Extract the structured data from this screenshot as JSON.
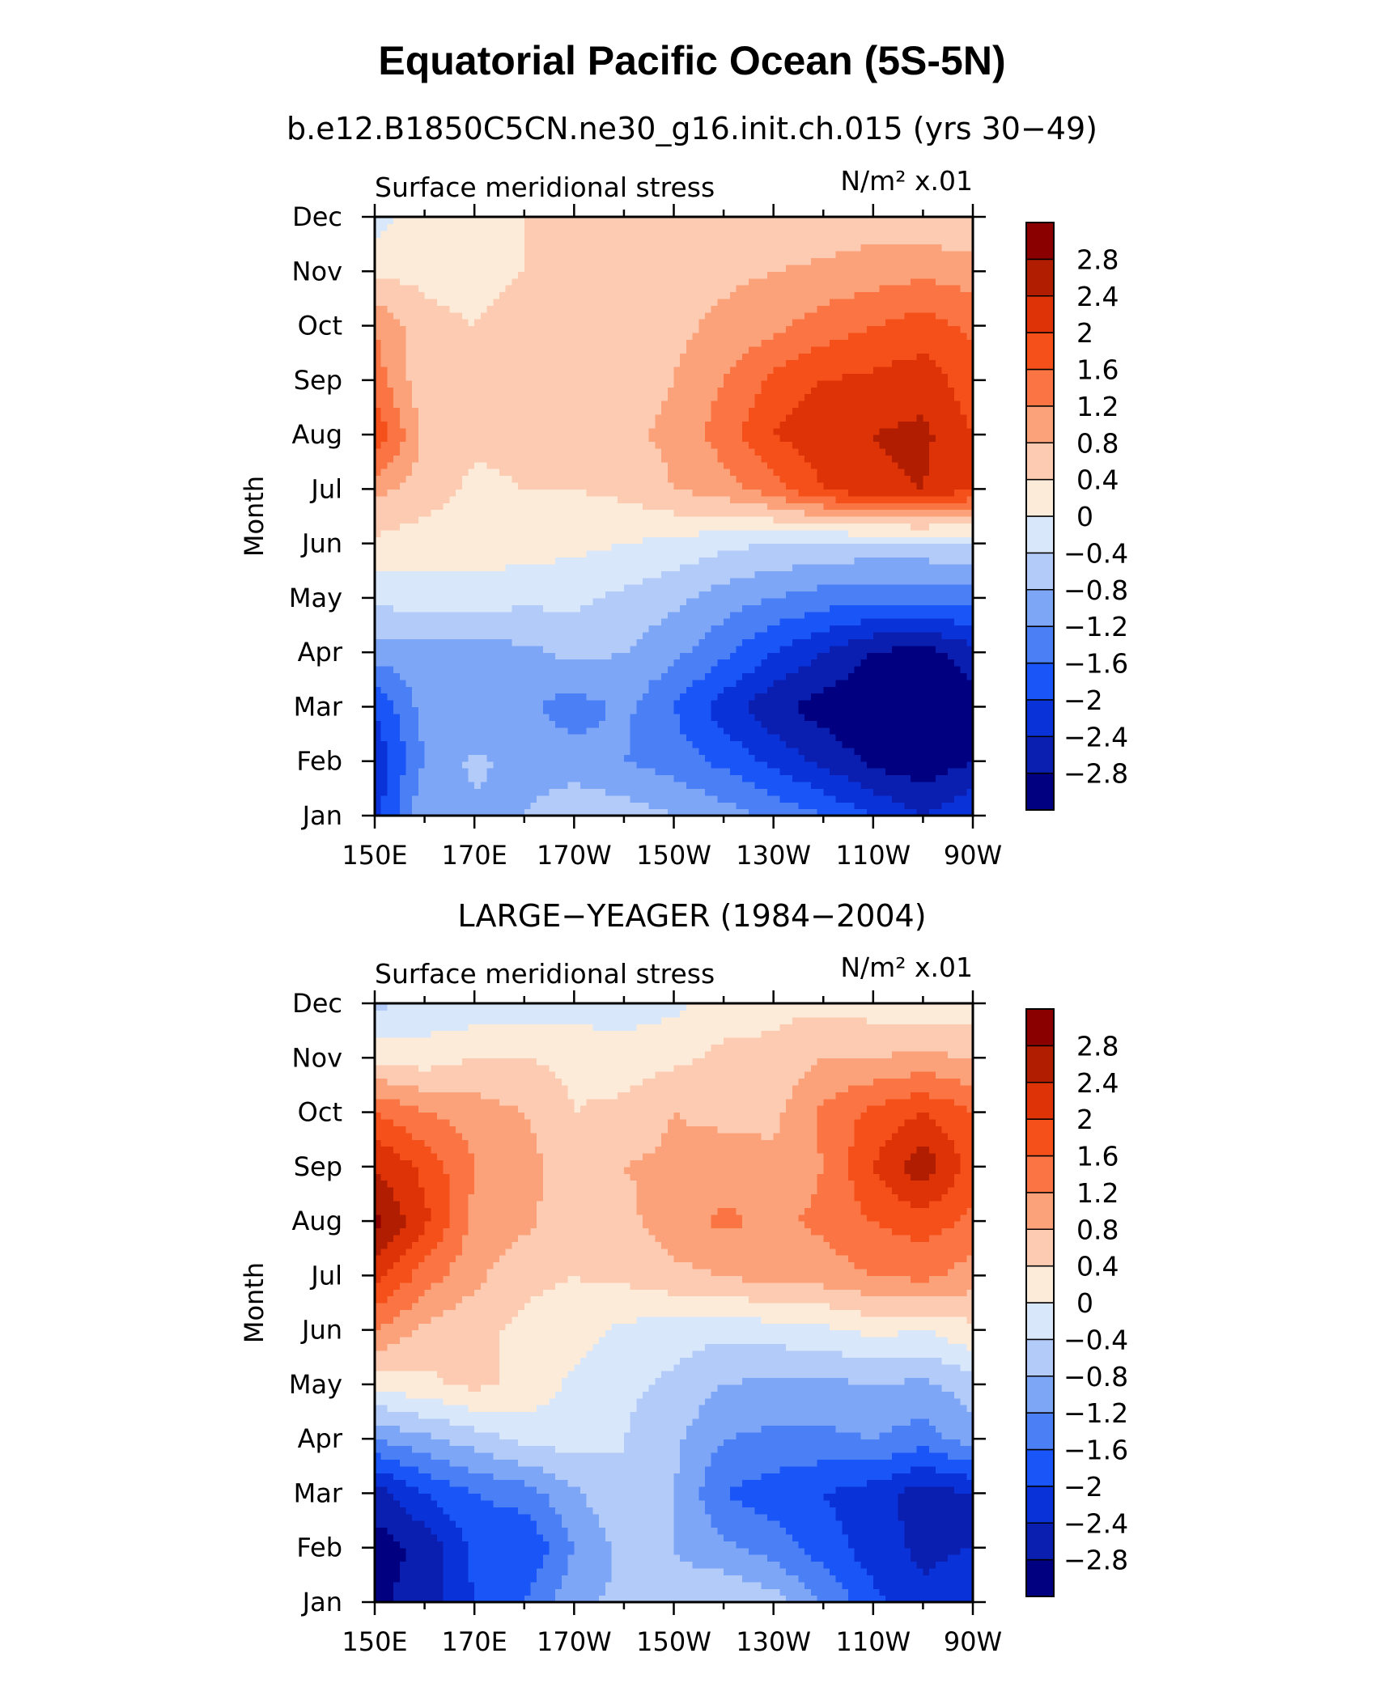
{
  "figure": {
    "title": "Equatorial Pacific Ocean (5S-5N)"
  },
  "colors": {
    "palette": [
      "#000080",
      "#0a1fb0",
      "#0a32d9",
      "#1a55f7",
      "#4a7ff5",
      "#7ea6f7",
      "#b3cbf9",
      "#d9e7fb",
      "#fdebd9",
      "#fccbb1",
      "#fba27b",
      "#fb7544",
      "#f5501a",
      "#de3306",
      "#b01d00",
      "#8a0000"
    ],
    "levels": [
      -2.8,
      -2.4,
      -2,
      -1.6,
      -1.2,
      -0.8,
      -0.4,
      0,
      0.4,
      0.8,
      1.2,
      1.6,
      2,
      2.4,
      2.8
    ]
  },
  "chart_data": [
    {
      "type": "heatmap",
      "panel_title": "b.e12.B1850C5CN.ne30_g16.init.ch.015 (yrs 30−49)",
      "left_label": "Surface meridional stress",
      "units_label": "N/m² x.01",
      "xlabel": "",
      "ylabel": "Month",
      "x_tick_labels": [
        "150E",
        "170E",
        "170W",
        "150W",
        "130W",
        "110W",
        "90W"
      ],
      "x_tick_values_deg": [
        150,
        170,
        190,
        210,
        230,
        250,
        270
      ],
      "y_tick_labels": [
        "Jan",
        "Feb",
        "Mar",
        "Apr",
        "May",
        "Jun",
        "Jul",
        "Aug",
        "Sep",
        "Oct",
        "Nov",
        "Dec"
      ],
      "colorbar_labels": [
        "−2.8",
        "−2.4",
        "−2",
        "−1.6",
        "−1.2",
        "−0.8",
        "−0.4",
        "0",
        "0.4",
        "0.8",
        "1.2",
        "1.6",
        "2",
        "2.4",
        "2.8"
      ],
      "lon": [
        150,
        160,
        170,
        180,
        190,
        200,
        210,
        220,
        230,
        240,
        250,
        260,
        270
      ],
      "months": [
        "Jan",
        "Feb",
        "Mar",
        "Apr",
        "May",
        "Jun",
        "Jul",
        "Aug",
        "Sep",
        "Oct",
        "Nov",
        "Dec"
      ],
      "values": [
        [
          -2.2,
          -0.8,
          -0.9,
          -0.8,
          -0.5,
          -0.6,
          -0.8,
          -1.0,
          -1.3,
          -1.6,
          -2.0,
          -2.4,
          -2.0
        ],
        [
          -2.3,
          -1.2,
          -0.7,
          -1.0,
          -1.0,
          -1.2,
          -1.4,
          -1.7,
          -2.1,
          -2.5,
          -2.9,
          -3.1,
          -2.8
        ],
        [
          -2.0,
          -1.0,
          -1.2,
          -1.1,
          -1.4,
          -1.1,
          -1.6,
          -2.2,
          -2.7,
          -3.0,
          -3.2,
          -3.2,
          -3.0
        ],
        [
          -1.0,
          -1.0,
          -1.0,
          -0.9,
          -0.7,
          -0.8,
          -1.1,
          -1.5,
          -2.0,
          -2.4,
          -2.8,
          -3.0,
          -2.6
        ],
        [
          -0.3,
          -0.2,
          -0.2,
          -0.3,
          -0.3,
          -0.5,
          -0.7,
          -1.0,
          -1.2,
          -1.4,
          -1.5,
          -1.5,
          -1.4
        ],
        [
          0.3,
          0.2,
          0.2,
          0.2,
          0.1,
          0.0,
          -0.1,
          -0.3,
          -0.4,
          -0.5,
          -0.5,
          -0.5,
          -0.4
        ],
        [
          0.9,
          0.6,
          0.3,
          0.4,
          0.4,
          0.5,
          0.8,
          1.0,
          1.4,
          2.0,
          2.3,
          2.4,
          2.0
        ],
        [
          2.0,
          0.7,
          0.5,
          0.5,
          0.6,
          0.7,
          0.9,
          1.4,
          2.0,
          2.3,
          2.4,
          2.5,
          2.0
        ],
        [
          1.4,
          0.5,
          0.5,
          0.5,
          0.6,
          0.6,
          0.8,
          1.2,
          1.7,
          2.0,
          2.1,
          2.2,
          1.8
        ],
        [
          1.2,
          0.5,
          0.4,
          0.5,
          0.5,
          0.6,
          0.7,
          0.9,
          1.1,
          1.4,
          1.6,
          1.8,
          1.5
        ],
        [
          0.3,
          0.3,
          0.3,
          0.4,
          0.5,
          0.6,
          0.6,
          0.7,
          0.8,
          0.9,
          1.0,
          1.1,
          1.0
        ],
        [
          -0.2,
          0.3,
          0.3,
          0.4,
          0.4,
          0.5,
          0.6,
          0.5,
          0.4,
          0.5,
          0.6,
          0.5,
          0.4
        ]
      ]
    },
    {
      "type": "heatmap",
      "panel_title": "LARGE−YEAGER (1984−2004)",
      "left_label": "Surface meridional stress",
      "units_label": "N/m² x.01",
      "xlabel": "",
      "ylabel": "Month",
      "x_tick_labels": [
        "150E",
        "170E",
        "170W",
        "150W",
        "130W",
        "110W",
        "90W"
      ],
      "x_tick_values_deg": [
        150,
        170,
        190,
        210,
        230,
        250,
        270
      ],
      "y_tick_labels": [
        "Jan",
        "Feb",
        "Mar",
        "Apr",
        "May",
        "Jun",
        "Jul",
        "Aug",
        "Sep",
        "Oct",
        "Nov",
        "Dec"
      ],
      "colorbar_labels": [
        "−2.8",
        "−2.4",
        "−2",
        "−1.6",
        "−1.2",
        "−0.8",
        "−0.4",
        "0",
        "0.4",
        "0.8",
        "1.2",
        "1.6",
        "2",
        "2.4",
        "2.8"
      ],
      "lon": [
        150,
        160,
        170,
        180,
        190,
        200,
        210,
        220,
        230,
        240,
        250,
        260,
        270
      ],
      "months": [
        "Jan",
        "Feb",
        "Mar",
        "Apr",
        "May",
        "Jun",
        "Jul",
        "Aug",
        "Sep",
        "Oct",
        "Nov",
        "Dec"
      ],
      "values": [
        [
          -2.9,
          -2.6,
          -2.0,
          -1.6,
          -0.9,
          -0.7,
          -0.6,
          -0.4,
          -0.6,
          -1.2,
          -1.9,
          -2.3,
          -2.0
        ],
        [
          -3.0,
          -2.7,
          -1.9,
          -2.0,
          -1.2,
          -0.7,
          -0.8,
          -1.1,
          -1.4,
          -1.8,
          -2.2,
          -2.5,
          -2.4
        ],
        [
          -2.6,
          -2.0,
          -1.6,
          -1.4,
          -0.9,
          -0.4,
          -0.8,
          -1.6,
          -1.8,
          -2.0,
          -2.2,
          -2.6,
          -2.4
        ],
        [
          -1.2,
          -0.9,
          -0.6,
          -0.3,
          -0.2,
          -0.4,
          -0.7,
          -1.2,
          -1.3,
          -1.3,
          -1.2,
          -1.4,
          -1.0
        ],
        [
          0.1,
          0.3,
          0.5,
          0.3,
          -0.1,
          -0.3,
          -0.5,
          -0.8,
          -0.9,
          -0.9,
          -0.8,
          -0.9,
          -0.6
        ],
        [
          1.2,
          0.7,
          0.5,
          0.3,
          0.2,
          -0.1,
          -0.2,
          -0.3,
          -0.2,
          -0.1,
          0.1,
          0.0,
          0.3
        ],
        [
          2.2,
          1.4,
          0.9,
          0.5,
          0.4,
          0.5,
          0.7,
          0.8,
          1.0,
          1.0,
          1.2,
          1.3,
          1.0
        ],
        [
          2.9,
          2.1,
          1.1,
          0.9,
          0.5,
          0.7,
          1.0,
          1.3,
          1.1,
          1.3,
          1.6,
          1.8,
          1.5
        ],
        [
          2.4,
          1.9,
          1.2,
          1.0,
          0.5,
          0.8,
          0.9,
          1.0,
          0.9,
          1.2,
          2.0,
          2.7,
          1.8
        ],
        [
          1.6,
          1.2,
          1.0,
          0.8,
          0.4,
          0.5,
          0.8,
          0.7,
          0.7,
          1.3,
          1.7,
          2.0,
          1.6
        ],
        [
          0.3,
          0.2,
          0.4,
          0.4,
          0.3,
          0.2,
          0.3,
          0.5,
          0.5,
          0.8,
          0.8,
          0.9,
          0.8
        ],
        [
          -0.5,
          -0.3,
          -0.3,
          -0.3,
          -0.2,
          -0.2,
          -0.1,
          0.2,
          0.3,
          0.3,
          0.2,
          0.1,
          0.1
        ]
      ]
    }
  ]
}
